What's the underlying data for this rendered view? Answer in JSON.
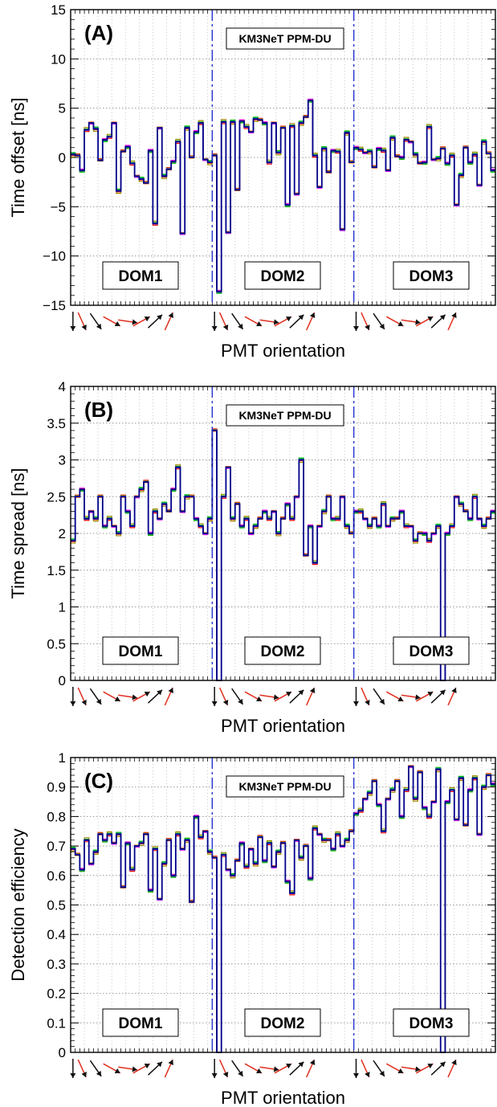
{
  "arrow_colors": {
    "black": "#111111",
    "red": "#e03020"
  },
  "series_colors": [
    "#00c000",
    "#ff0000",
    "#ff00ff",
    "#9a8a00",
    "#ff8c00",
    "#008080",
    "#4040ff",
    "#00008b"
  ],
  "dom_line_color": "#2233cc",
  "chart_data": [
    {
      "type": "line",
      "panel_label": "(A)",
      "detector_label": "KM3NeT PPM-DU",
      "ylabel": "Time offset [ns]",
      "xlabel": "PMT orientation",
      "ylim": [
        -15,
        15
      ],
      "yticks": [
        "15",
        "10",
        "5",
        "0",
        "−5",
        "−10",
        "−15"
      ],
      "yticks_values": [
        15,
        10,
        5,
        0,
        -5,
        -10,
        -15
      ],
      "grid": true,
      "dom_labels": [
        "DOM1",
        "DOM2",
        "DOM3"
      ],
      "pmt_count": 93,
      "dom_boundaries": [
        31,
        62
      ],
      "values": [
        0.3,
        0.2,
        -1.3,
        2.8,
        3.5,
        2.9,
        -0.3,
        1.8,
        2.1,
        3.5,
        -3.4,
        0.6,
        1.1,
        -0.6,
        -1.9,
        -2.2,
        -2.6,
        0.7,
        -6.7,
        3.0,
        -1.9,
        -1.2,
        -0.4,
        1.6,
        -7.7,
        3.0,
        0.0,
        2.6,
        3.5,
        -0.2,
        -0.5,
        0.2,
        -13.6,
        3.6,
        -7.6,
        3.6,
        -3.3,
        3.7,
        3.1,
        2.6,
        3.9,
        3.8,
        3.5,
        -0.5,
        3.5,
        0.5,
        3.0,
        -4.8,
        3.2,
        -3.7,
        3.5,
        4.1,
        5.8,
        0.2,
        -3.0,
        0.9,
        -1.5,
        0.7,
        0.6,
        -7.3,
        2.5,
        -0.5,
        1.0,
        0.8,
        0.5,
        0.6,
        -1.0,
        0.9,
        0.7,
        -1.3,
        2.0,
        0.1,
        0.0,
        1.8,
        1.6,
        0.3,
        -0.6,
        -0.5,
        3.1,
        -0.2,
        -0.1,
        0.9,
        -0.6,
        0.2,
        -4.8,
        -1.8,
        1.0,
        -0.5,
        0.3,
        -2.8,
        1.6,
        0.4,
        -1.3
      ]
    },
    {
      "type": "line",
      "panel_label": "(B)",
      "detector_label": "KM3NeT PPM-DU",
      "ylabel": "Time spread [ns]",
      "xlabel": "PMT orientation",
      "ylim": [
        0,
        4
      ],
      "yticks": [
        "4",
        "3.5",
        "3",
        "2.5",
        "2",
        "1.5",
        "1",
        "0.5",
        "0"
      ],
      "yticks_values": [
        4,
        3.5,
        3,
        2.5,
        2,
        1.5,
        1,
        0.5,
        0
      ],
      "grid": true,
      "dom_labels": [
        "DOM1",
        "DOM2",
        "DOM3"
      ],
      "pmt_count": 93,
      "dom_boundaries": [
        31,
        62
      ],
      "values": [
        1.9,
        2.5,
        2.6,
        2.2,
        2.3,
        2.2,
        2.5,
        2.1,
        2.2,
        2.1,
        2.0,
        2.5,
        2.3,
        2.1,
        2.5,
        2.6,
        2.7,
        2.0,
        2.3,
        2.2,
        2.4,
        2.3,
        2.6,
        2.9,
        2.3,
        2.5,
        2.5,
        2.2,
        2.1,
        2.0,
        2.2,
        3.4,
        0.0,
        2.5,
        2.9,
        2.2,
        2.4,
        2.1,
        2.2,
        2.0,
        2.1,
        2.2,
        2.3,
        2.2,
        2.3,
        2.0,
        2.2,
        2.4,
        2.2,
        2.5,
        3.0,
        1.7,
        2.1,
        1.6,
        2.1,
        2.3,
        2.5,
        2.2,
        2.2,
        2.5,
        2.1,
        2.0,
        2.3,
        2.3,
        2.2,
        2.1,
        2.2,
        2.1,
        2.4,
        2.1,
        2.2,
        2.2,
        2.3,
        2.1,
        2.1,
        1.9,
        2.0,
        2.0,
        1.9,
        2.0,
        2.1,
        0.0,
        2.0,
        2.1,
        2.5,
        2.4,
        2.3,
        2.2,
        2.5,
        2.2,
        2.1,
        2.2,
        2.3
      ]
    },
    {
      "type": "line",
      "panel_label": "(C)",
      "detector_label": "KM3NeT PPM-DU",
      "ylabel": "Detection efficiency",
      "xlabel": "PMT orientation",
      "ylim": [
        0,
        1
      ],
      "yticks": [
        "1",
        "0.9",
        "0.8",
        "0.7",
        "0.6",
        "0.5",
        "0.4",
        "0.3",
        "0.2",
        "0.1",
        "0"
      ],
      "yticks_values": [
        1,
        0.9,
        0.8,
        0.7,
        0.6,
        0.5,
        0.4,
        0.3,
        0.2,
        0.1,
        0
      ],
      "grid": true,
      "dom_labels": [
        "DOM1",
        "DOM2",
        "DOM3"
      ],
      "pmt_count": 93,
      "dom_boundaries": [
        31,
        62
      ],
      "values": [
        0.69,
        0.67,
        0.62,
        0.72,
        0.64,
        0.68,
        0.74,
        0.72,
        0.74,
        0.71,
        0.74,
        0.56,
        0.71,
        0.62,
        0.7,
        0.71,
        0.74,
        0.55,
        0.69,
        0.52,
        0.64,
        0.72,
        0.6,
        0.74,
        0.69,
        0.72,
        0.51,
        0.8,
        0.73,
        0.75,
        0.68,
        0.66,
        0.0,
        0.67,
        0.62,
        0.6,
        0.65,
        0.71,
        0.63,
        0.69,
        0.64,
        0.73,
        0.65,
        0.71,
        0.63,
        0.68,
        0.71,
        0.58,
        0.54,
        0.72,
        0.66,
        0.7,
        0.59,
        0.76,
        0.74,
        0.72,
        0.72,
        0.69,
        0.74,
        0.7,
        0.72,
        0.75,
        0.81,
        0.82,
        0.86,
        0.88,
        0.92,
        0.84,
        0.75,
        0.86,
        0.89,
        0.92,
        0.8,
        0.89,
        0.97,
        0.86,
        0.95,
        0.83,
        0.8,
        0.85,
        0.96,
        0.0,
        0.85,
        0.89,
        0.79,
        0.93,
        0.77,
        0.89,
        0.93,
        0.74,
        0.9,
        0.94,
        0.91
      ]
    }
  ]
}
